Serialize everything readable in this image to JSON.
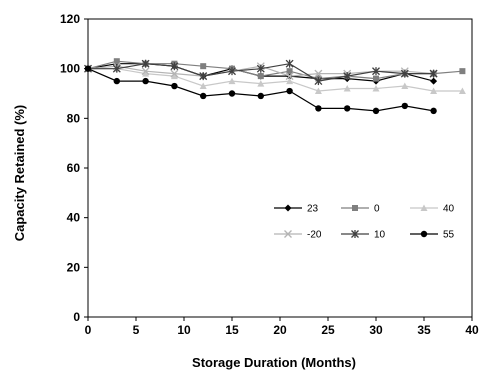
{
  "chart_data": {
    "type": "line",
    "xlabel": "Storage Duration (Months)",
    "ylabel": "Capacity Retained (%)",
    "xlim": [
      0,
      40
    ],
    "ylim": [
      0,
      120
    ],
    "xticks": [
      0,
      5,
      10,
      15,
      20,
      25,
      30,
      35,
      40
    ],
    "yticks": [
      0,
      20,
      40,
      60,
      80,
      100,
      120
    ],
    "grid": false,
    "legend": "center-right, inside plot, 3 columns",
    "series": [
      {
        "name": "23",
        "color": "#000000",
        "marker": "diamond",
        "x": [
          0,
          3,
          6,
          9,
          12,
          15,
          18,
          21,
          24,
          27,
          30,
          33,
          36
        ],
        "y": [
          100,
          102,
          102,
          101,
          97,
          100,
          97,
          97,
          96,
          96,
          95,
          98,
          95
        ]
      },
      {
        "name": "0",
        "color": "#7f7f7f",
        "marker": "square",
        "x": [
          0,
          3,
          6,
          9,
          12,
          15,
          18,
          21,
          24,
          27,
          30,
          33,
          36,
          39
        ],
        "y": [
          100,
          103,
          102,
          102,
          101,
          100,
          97,
          99,
          96,
          97,
          96,
          98,
          98,
          99
        ]
      },
      {
        "name": "40",
        "color": "#c8c8c8",
        "marker": "triangle",
        "x": [
          0,
          3,
          6,
          9,
          12,
          15,
          18,
          21,
          24,
          27,
          30,
          33,
          36,
          39
        ],
        "y": [
          100,
          100,
          98,
          97,
          93,
          95,
          94,
          95,
          91,
          92,
          92,
          93,
          91,
          91
        ]
      },
      {
        "name": "-20",
        "color": "#b4b4b4",
        "marker": "x",
        "x": [
          0,
          3,
          6,
          9,
          12,
          15,
          18,
          21,
          24,
          27,
          30,
          33,
          36
        ],
        "y": [
          100,
          101,
          99,
          98,
          97,
          99,
          101,
          97,
          98,
          98,
          99,
          99,
          98
        ]
      },
      {
        "name": "10",
        "color": "#404040",
        "marker": "star",
        "x": [
          0,
          3,
          6,
          9,
          12,
          15,
          18,
          21,
          24,
          27,
          30,
          33,
          36
        ],
        "y": [
          100,
          100,
          102,
          101,
          97,
          99,
          100,
          102,
          95,
          97,
          99,
          98,
          98
        ]
      },
      {
        "name": "55",
        "color": "#000000",
        "marker": "circle",
        "x": [
          0,
          3,
          6,
          9,
          12,
          15,
          18,
          21,
          24,
          27,
          30,
          33,
          36
        ],
        "y": [
          100,
          95,
          95,
          93,
          89,
          90,
          89,
          91,
          84,
          84,
          83,
          85,
          83
        ]
      }
    ]
  }
}
